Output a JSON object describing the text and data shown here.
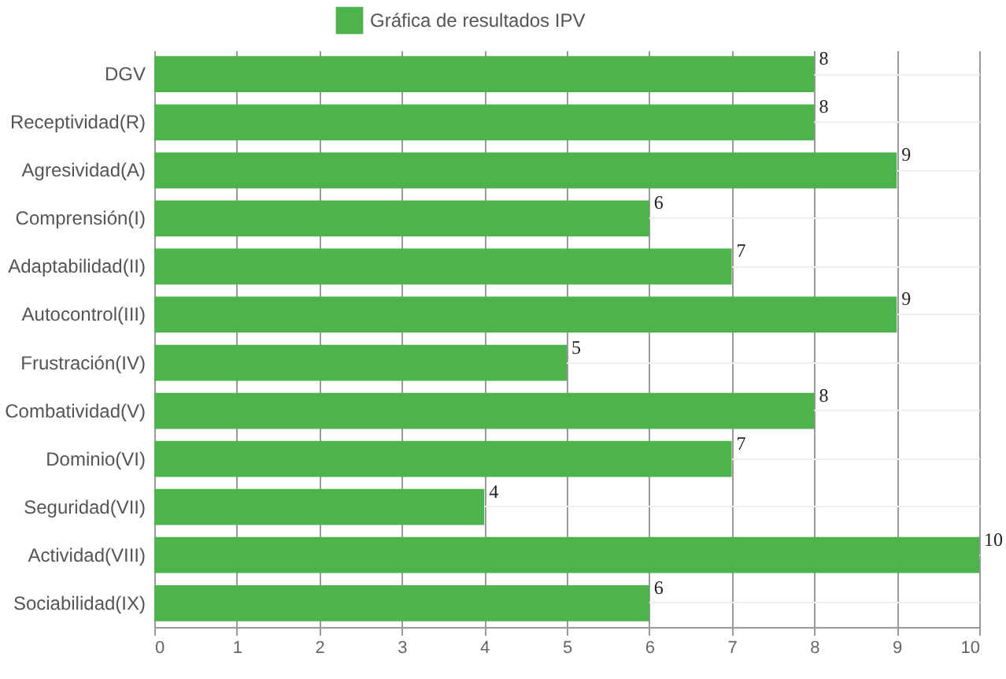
{
  "chart_data": {
    "type": "bar",
    "orientation": "horizontal",
    "categories": [
      "DGV",
      "Receptividad(R)",
      "Agresividad(A)",
      "Comprensión(I)",
      "Adaptabilidad(II)",
      "Autocontrol(III)",
      "Frustración(IV)",
      "Combatividad(V)",
      "Dominio(VI)",
      "Seguridad(VII)",
      "Actividad(VIII)",
      "Sociabilidad(IX)"
    ],
    "series": [
      {
        "name": "Gráfica de resultados IPV",
        "color": "#4db34c",
        "values": [
          8,
          8,
          9,
          6,
          7,
          9,
          5,
          8,
          7,
          4,
          10,
          6
        ]
      }
    ],
    "xlim": [
      0,
      10
    ],
    "xticks": [
      0,
      1,
      2,
      3,
      4,
      5,
      6,
      7,
      8,
      9,
      10
    ],
    "grid": true,
    "legend": "top",
    "data_labels": true
  }
}
